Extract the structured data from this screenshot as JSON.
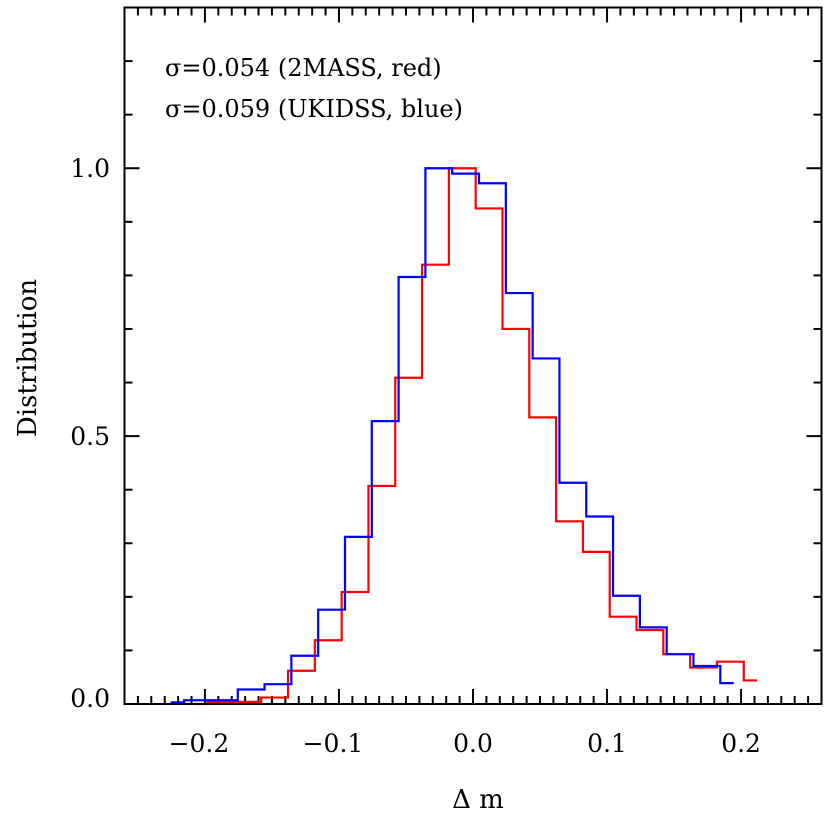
{
  "chart_data": {
    "type": "histogram-step",
    "xlabel": "Δ m",
    "ylabel": "Distribution",
    "xlim": [
      -0.26,
      0.26
    ],
    "ylim": [
      0,
      1.3
    ],
    "x_ticks": [
      -0.2,
      -0.1,
      0.0,
      0.1,
      0.2
    ],
    "x_tick_labels": [
      "−0.2",
      "−0.1",
      "0.0",
      "0.1",
      "0.2"
    ],
    "x_minor_step": 0.01,
    "y_ticks": [
      0.0,
      0.5,
      1.0
    ],
    "y_tick_labels": [
      "0.0",
      "0.5",
      "1.0"
    ],
    "y_minor_step": 0.1,
    "grid": false,
    "annotations": [
      "σ=0.054 (2MASS, red)",
      "σ=0.059 (UKIDSS, blue)"
    ],
    "series": [
      {
        "color": "#ff0000",
        "bin_width": 0.02,
        "x": [
          -0.208,
          -0.188,
          -0.168,
          -0.148,
          -0.128,
          -0.108,
          -0.088,
          -0.068,
          -0.048,
          -0.028,
          -0.008,
          0.012,
          0.032,
          0.052,
          0.072,
          0.092,
          0.112,
          0.132,
          0.152,
          0.172,
          0.192,
          0.212
        ],
        "values": [
          0.0,
          0.004,
          0.004,
          0.012,
          0.062,
          0.119,
          0.209,
          0.407,
          0.609,
          0.82,
          1.0,
          0.925,
          0.7,
          0.535,
          0.341,
          0.284,
          0.163,
          0.138,
          0.093,
          0.068,
          0.079,
          0.044
        ]
      },
      {
        "color": "#0000ff",
        "bin_width": 0.02,
        "x": [
          -0.2255,
          -0.2055,
          -0.1855,
          -0.1655,
          -0.1455,
          -0.1255,
          -0.1055,
          -0.0855,
          -0.0655,
          -0.0455,
          -0.0255,
          -0.0055,
          0.0145,
          0.0345,
          0.0545,
          0.0745,
          0.0945,
          0.1145,
          0.1345,
          0.1545,
          0.1745,
          0.1945
        ],
        "values": [
          0.003,
          0.007,
          0.007,
          0.027,
          0.037,
          0.09,
          0.176,
          0.312,
          0.528,
          0.797,
          1.0,
          0.99,
          0.972,
          0.767,
          0.645,
          0.413,
          0.35,
          0.202,
          0.143,
          0.093,
          0.071,
          0.039
        ]
      }
    ]
  }
}
